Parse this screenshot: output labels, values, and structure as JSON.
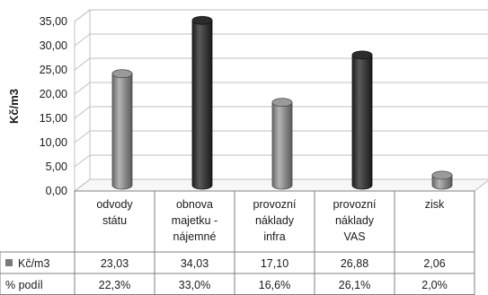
{
  "chart_data": {
    "type": "bar",
    "ylabel": "Kč/m3",
    "ylim": [
      0,
      35
    ],
    "ytick_step": 5,
    "ytick_labels": [
      "0,00",
      "5,00",
      "10,00",
      "15,00",
      "20,00",
      "25,00",
      "30,00",
      "35,00"
    ],
    "grid": true,
    "style": "3d-cylinder",
    "categories": [
      [
        "odvody",
        "státu"
      ],
      [
        "obnova",
        "majetku -",
        "nájemné"
      ],
      [
        "provozní",
        "náklady",
        "infra"
      ],
      [
        "provozní",
        "náklady",
        "VAS"
      ],
      [
        "zisk"
      ]
    ],
    "values": [
      23.03,
      34.03,
      17.1,
      26.88,
      2.06
    ],
    "value_labels": [
      "23,03",
      "34,03",
      "17,10",
      "26,88",
      "2,06"
    ],
    "bar_shades": [
      "light",
      "dark",
      "light",
      "dark",
      "light"
    ],
    "table_rows": [
      {
        "label": "Kč/m3",
        "legend_marker": true,
        "cells": [
          "23,03",
          "34,03",
          "17,10",
          "26,88",
          "2,06"
        ]
      },
      {
        "label": "% podíl",
        "legend_marker": false,
        "cells": [
          "22,3%",
          "33,0%",
          "16,6%",
          "26,1%",
          "2,0%"
        ]
      }
    ],
    "colors": {
      "light_bar": "#8c8c8c",
      "dark_bar": "#3a3a3a",
      "grid": "#bfbfbf",
      "marker": "#7a7a7a"
    }
  }
}
